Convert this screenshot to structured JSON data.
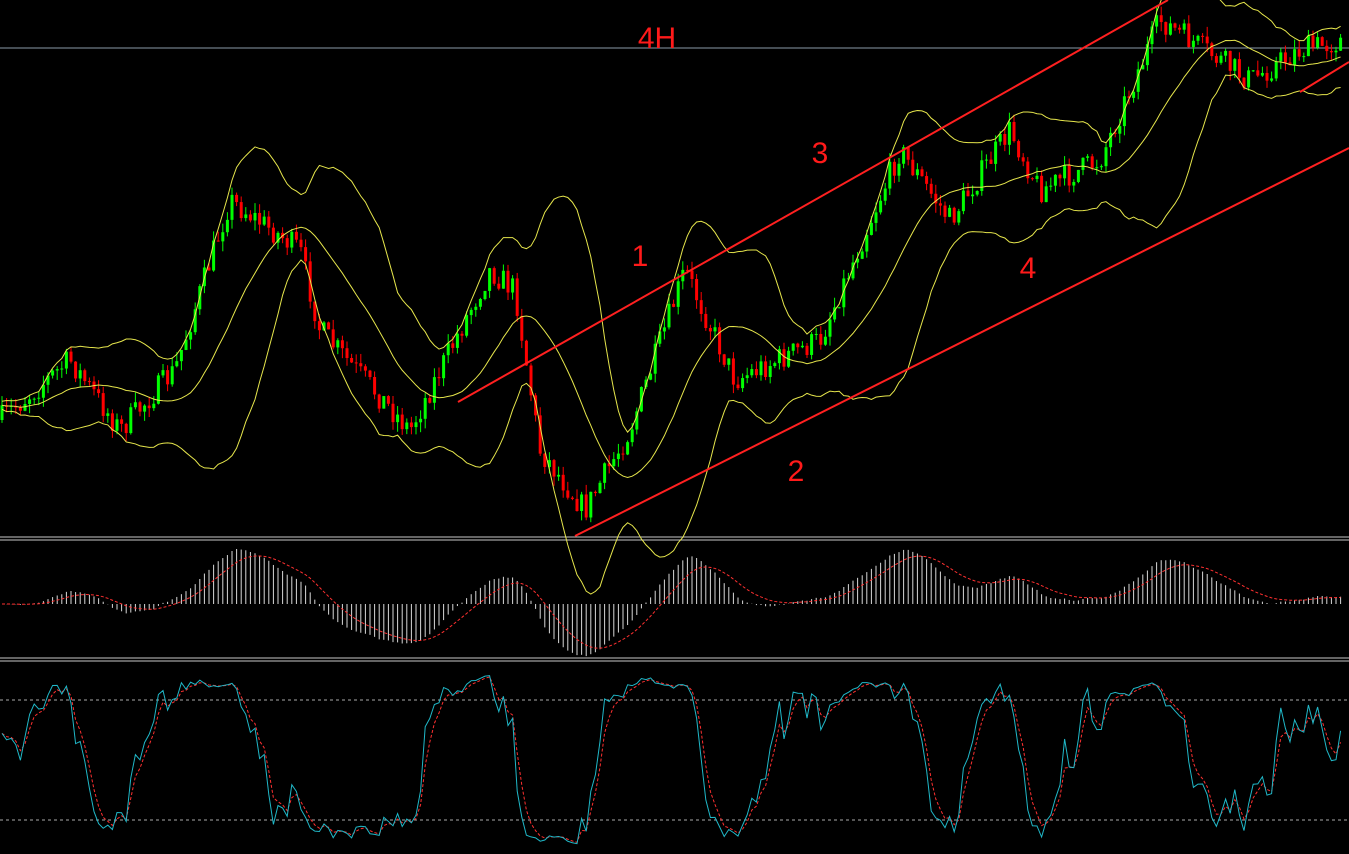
{
  "header": {
    "timeframe": "4H"
  },
  "annotations": {
    "labels": [
      "1",
      "2",
      "3",
      "4"
    ]
  }
}
